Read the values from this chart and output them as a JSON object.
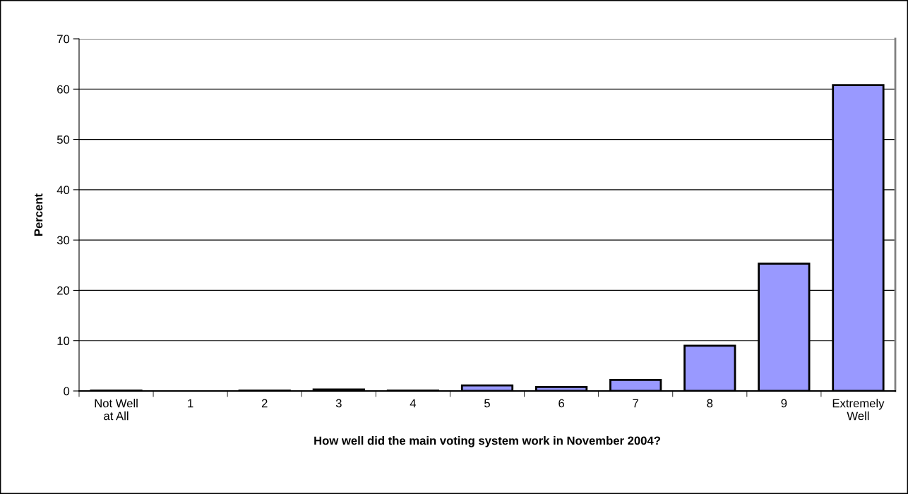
{
  "chart_data": {
    "type": "bar",
    "categories": [
      "Not Well\nat All",
      "1",
      "2",
      "3",
      "4",
      "5",
      "6",
      "7",
      "8",
      "9",
      "Extremely\nWell"
    ],
    "values": [
      0.1,
      0,
      0.1,
      0.3,
      0.1,
      1.1,
      0.8,
      2.2,
      9.0,
      25.3,
      60.8
    ],
    "color": "#9999ff",
    "xlabel": "How well did the main voting system work in November 2004?",
    "ylabel": "Percent",
    "ylim": [
      0,
      70
    ],
    "yticks": [
      0,
      10,
      20,
      30,
      40,
      50,
      60,
      70
    ],
    "grid": "y"
  }
}
